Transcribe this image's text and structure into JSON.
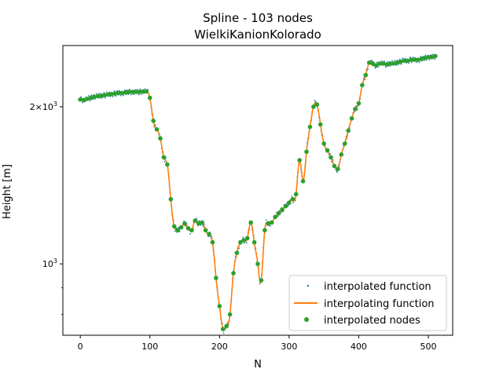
{
  "chart_data": {
    "type": "line",
    "title": "Spline - 103 nodes",
    "subtitle": "WielkiKanionKolorado",
    "xlabel": "N",
    "ylabel": "Height [m]",
    "y_scale": "log",
    "xlim": [
      -25,
      535
    ],
    "ylim": [
      730,
      2620
    ],
    "x_ticks": [
      0,
      100,
      200,
      300,
      400,
      500
    ],
    "x_tick_labels": [
      "0",
      "100",
      "200",
      "300",
      "400",
      "500"
    ],
    "y_major_ticks": [
      1000,
      2000
    ],
    "y_major_tick_labels": [
      "10^3",
      "2×10^3"
    ],
    "y_minor_ticks": [
      800,
      900,
      3000
    ],
    "grid": false,
    "legend_position": "lower-right",
    "colors": {
      "function": "#1f77b4",
      "spline": "#ff7f0e",
      "nodes": "#2ca02c"
    },
    "series": [
      {
        "name": "interpolated function",
        "style": "dots"
      },
      {
        "name": "interpolating function",
        "style": "line"
      },
      {
        "name": "interpolated nodes",
        "style": "markers"
      }
    ],
    "nodes": {
      "x": [
        0,
        5,
        10,
        15,
        20,
        25,
        30,
        35,
        40,
        45,
        50,
        55,
        60,
        65,
        70,
        75,
        80,
        85,
        90,
        95,
        100,
        105,
        110,
        115,
        120,
        125,
        130,
        135,
        140,
        145,
        150,
        155,
        160,
        165,
        170,
        175,
        180,
        185,
        190,
        195,
        200,
        205,
        210,
        215,
        220,
        225,
        230,
        235,
        240,
        245,
        250,
        255,
        260,
        265,
        270,
        275,
        280,
        285,
        290,
        295,
        300,
        305,
        310,
        315,
        320,
        325,
        330,
        335,
        340,
        345,
        350,
        355,
        360,
        365,
        370,
        375,
        380,
        385,
        390,
        395,
        400,
        405,
        410,
        415,
        420,
        425,
        430,
        435,
        440,
        445,
        450,
        455,
        460,
        465,
        470,
        475,
        480,
        485,
        490,
        495,
        500,
        505,
        510
      ],
      "y": [
        2065,
        2060,
        2070,
        2080,
        2090,
        2095,
        2100,
        2105,
        2110,
        2115,
        2120,
        2125,
        2125,
        2130,
        2135,
        2135,
        2135,
        2135,
        2140,
        2140,
        2080,
        1880,
        1810,
        1740,
        1600,
        1550,
        1330,
        1180,
        1160,
        1175,
        1195,
        1170,
        1160,
        1210,
        1195,
        1200,
        1160,
        1140,
        1100,
        940,
        830,
        750,
        760,
        800,
        960,
        1050,
        1100,
        1110,
        1120,
        1200,
        1100,
        1000,
        930,
        1160,
        1195,
        1200,
        1230,
        1250,
        1270,
        1290,
        1310,
        1330,
        1360,
        1580,
        1440,
        1640,
        1830,
        2000,
        2020,
        1850,
        1700,
        1650,
        1600,
        1540,
        1520,
        1620,
        1700,
        1800,
        1900,
        1980,
        2030,
        2200,
        2300,
        2430,
        2420,
        2400,
        2420,
        2420,
        2410,
        2420,
        2420,
        2430,
        2440,
        2450,
        2450,
        2460,
        2460,
        2460,
        2470,
        2480,
        2490,
        2490,
        2500
      ]
    }
  }
}
